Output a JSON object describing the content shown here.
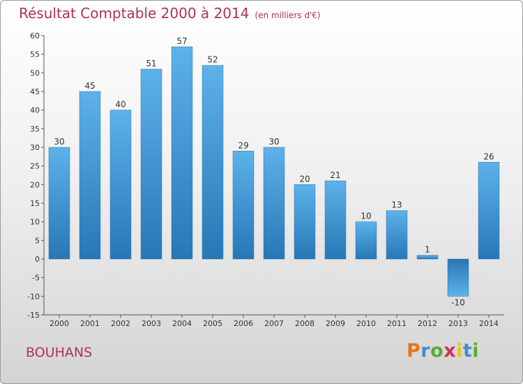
{
  "chart_data": {
    "type": "bar",
    "title": "Résultat Comptable 2000 à 2014",
    "subtitle": "(en milliers d'€)",
    "categories": [
      "2000",
      "2001",
      "2002",
      "2003",
      "2004",
      "2005",
      "2006",
      "2007",
      "2008",
      "2009",
      "2010",
      "2011",
      "2012",
      "2013",
      "2014"
    ],
    "values": [
      30,
      45,
      40,
      51,
      57,
      52,
      29,
      30,
      20,
      21,
      10,
      13,
      1,
      -10,
      26
    ],
    "ylim": [
      -15,
      60
    ],
    "yticks": [
      -15,
      -10,
      -5,
      0,
      5,
      10,
      15,
      20,
      25,
      30,
      35,
      40,
      45,
      50,
      55,
      60
    ],
    "xlabel": "",
    "ylabel": "",
    "grid": false,
    "bar_color": "#3a95d6"
  },
  "location": "BOUHANS",
  "logo": {
    "letters": [
      "P",
      "r",
      "o",
      "x",
      "i",
      "t",
      "i"
    ],
    "colors": [
      "#e8741e",
      "#3f8fd0",
      "#5aab2d",
      "#d4305c",
      "#e8c51e",
      "#3f8fd0",
      "#5aab2d"
    ]
  },
  "colors": {
    "accent": "#b0305c"
  }
}
